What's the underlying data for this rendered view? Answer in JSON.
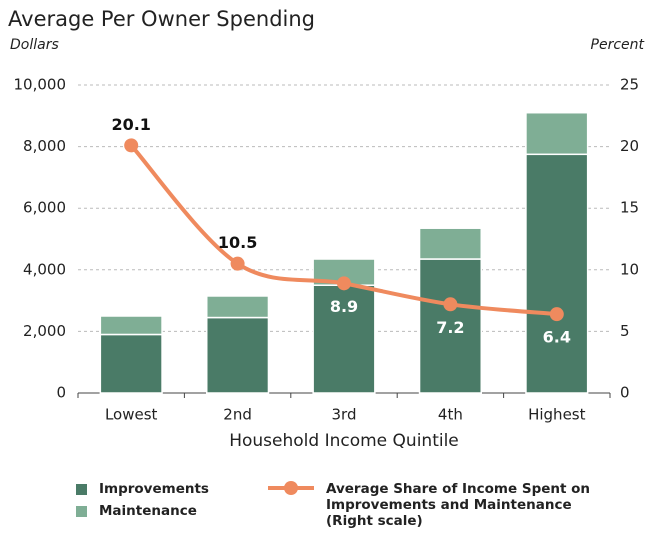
{
  "chart_data": {
    "type": "bar_line",
    "title": "Average Per Owner Spending",
    "y_axis_label": "Dollars",
    "y2_axis_label": "Percent",
    "x_axis_label": "Household Income Quintile",
    "categories": [
      "Lowest",
      "2nd",
      "3rd",
      "4th",
      "Highest"
    ],
    "series": [
      {
        "name": "Improvements",
        "type": "bar",
        "color": "#4a7b67",
        "values": [
          1900,
          2450,
          3500,
          4350,
          7750
        ]
      },
      {
        "name": "Maintenance",
        "type": "bar",
        "color": "#7fae95",
        "values": [
          600,
          700,
          850,
          1000,
          1350
        ]
      },
      {
        "name": "Average Share of Income Spent on Improvements and Maintenance (Right scale)",
        "type": "line",
        "axis": "y2",
        "color": "#ef8a5e",
        "values": [
          20.1,
          10.5,
          8.9,
          7.2,
          6.4
        ]
      }
    ],
    "stacked": true,
    "ylim": [
      0,
      10000
    ],
    "yticks": [
      0,
      {
        "value": 2000,
        "label": "2,000"
      },
      {
        "value": 4000,
        "label": "4,000"
      },
      {
        "value": 6000,
        "label": "6,000"
      },
      {
        "value": 8000,
        "label": "8,000"
      },
      {
        "value": 10000,
        "label": "10,000"
      }
    ],
    "y2lim": [
      0,
      25
    ],
    "y2ticks": [
      0,
      5,
      10,
      15,
      20,
      25
    ],
    "grid": true,
    "legend": "bottom"
  }
}
